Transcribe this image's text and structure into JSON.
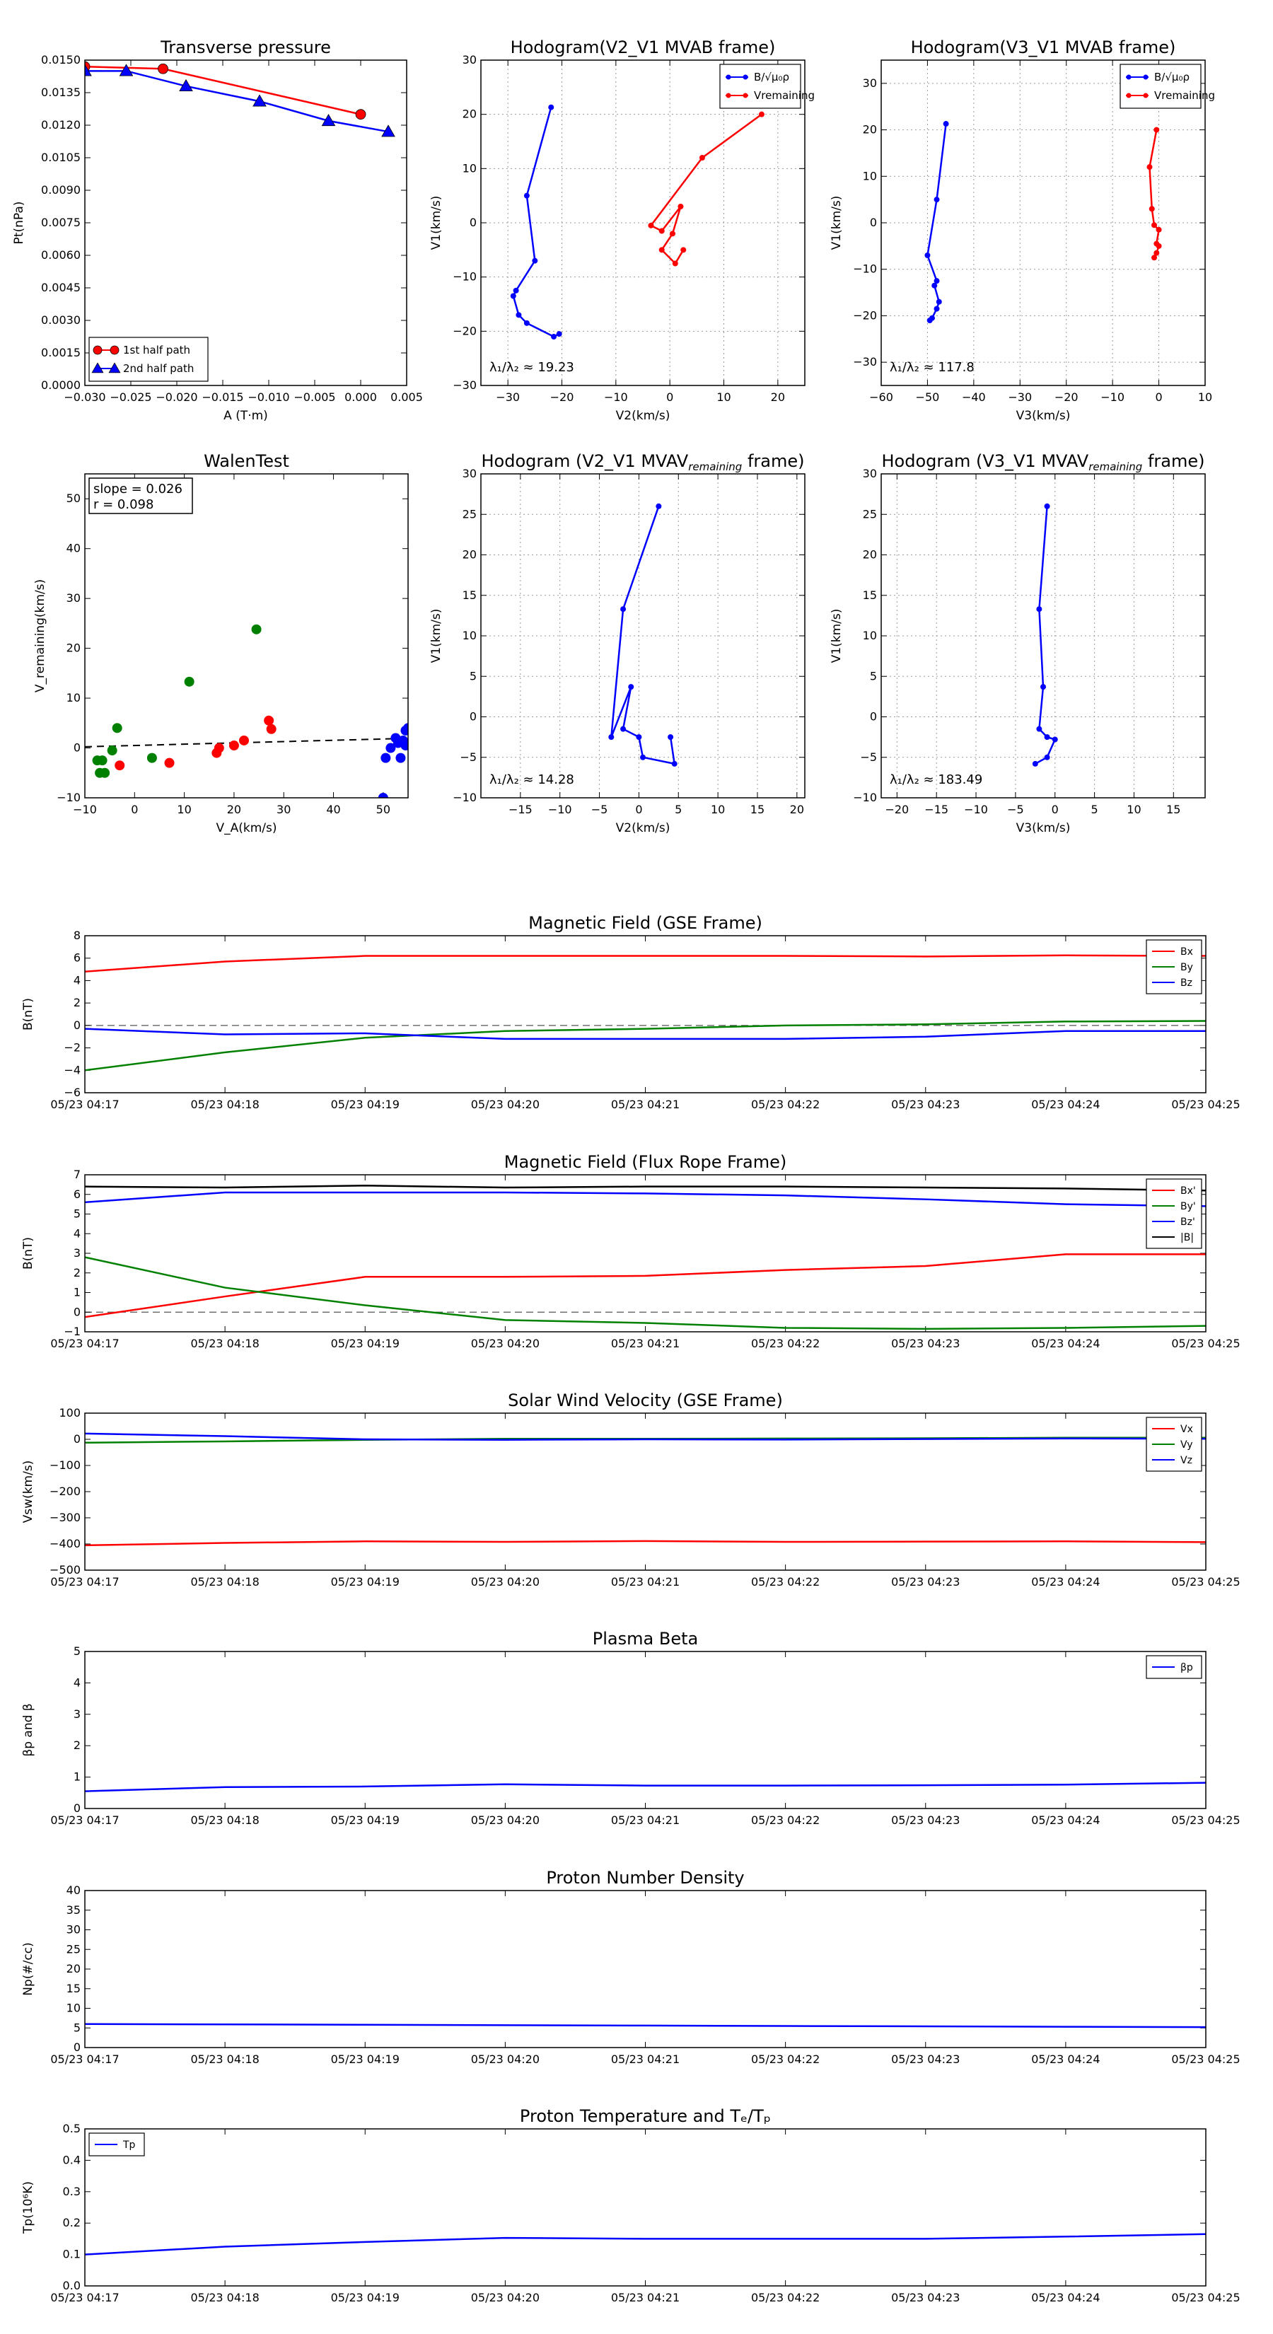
{
  "colors": {
    "red": "#ff0000",
    "green": "#008000",
    "blue": "#0000ff",
    "black": "#000000",
    "grid": "#9a9a9a"
  },
  "chart_data": [
    {
      "id": "transverse-pressure",
      "type": "line",
      "title": "Transverse pressure",
      "xlabel": "A (T·m)",
      "ylabel": "Pt(nPa)",
      "xlim": [
        -0.03,
        0.005
      ],
      "ylim": [
        0.0,
        0.015
      ],
      "xticks": [
        "−0.030",
        "−0.025",
        "−0.020",
        "−0.015",
        "−0.010",
        "−0.005",
        "0.000",
        "0.005"
      ],
      "yticks": [
        "0.0000",
        "0.0015",
        "0.0030",
        "0.0045",
        "0.0060",
        "0.0075",
        "0.0090",
        "0.0105",
        "0.0120",
        "0.0135",
        "0.0150"
      ],
      "grid": false,
      "legend_position": "lower-left",
      "series": [
        {
          "name": "1st half path",
          "color": "red",
          "marker": "circle",
          "x": [
            -0.03,
            -0.0215,
            0.0
          ],
          "y": [
            0.0147,
            0.0146,
            0.0125
          ]
        },
        {
          "name": "2nd half path",
          "color": "blue",
          "marker": "triangle",
          "x": [
            -0.03,
            -0.0255,
            -0.019,
            -0.011,
            -0.0035,
            0.003
          ],
          "y": [
            0.0145,
            0.0145,
            0.0138,
            0.0131,
            0.0122,
            0.0117
          ]
        }
      ]
    },
    {
      "id": "hodogram-v2-v1-mvab",
      "type": "line",
      "title": "Hodogram(V2_V1 MVAB frame)",
      "xlabel": "V2(km/s)",
      "ylabel": "V1(km/s)",
      "xlim": [
        -35,
        25
      ],
      "ylim": [
        -30,
        30
      ],
      "xticks": [
        "−30",
        "−20",
        "−10",
        "0",
        "10",
        "20"
      ],
      "yticks": [
        "−30",
        "−20",
        "−10",
        "0",
        "10",
        "20",
        "30"
      ],
      "grid": true,
      "legend_position": "top-right",
      "annotation": "λ₁/λ₂ ≈ 19.23",
      "series": [
        {
          "name": "B/√μ₀ρ",
          "color": "blue",
          "x": [
            -22.0,
            -26.5,
            -25.0,
            -28.5,
            -29.0,
            -28.0,
            -26.5,
            -21.5,
            -20.5
          ],
          "y": [
            21.3,
            5.0,
            -7.0,
            -12.5,
            -13.5,
            -17.0,
            -18.5,
            -21.0,
            -20.5
          ]
        },
        {
          "name": "Vremaining",
          "color": "red",
          "x": [
            17.0,
            6.0,
            -3.5,
            -1.5,
            2.0,
            0.5,
            -1.5,
            1.0,
            2.5
          ],
          "y": [
            20.0,
            12.0,
            -0.5,
            -1.5,
            3.0,
            -2.0,
            -5.0,
            -7.5,
            -5.0
          ]
        }
      ]
    },
    {
      "id": "hodogram-v3-v1-mvab",
      "type": "line",
      "title": "Hodogram(V3_V1 MVAB frame)",
      "xlabel": "V3(km/s)",
      "ylabel": "V1(km/s)",
      "xlim": [
        -60,
        10
      ],
      "ylim": [
        -35,
        35
      ],
      "xticks": [
        "−60",
        "−50",
        "−40",
        "−30",
        "−20",
        "−10",
        "0",
        "10"
      ],
      "yticks": [
        "−30",
        "−20",
        "−10",
        "0",
        "10",
        "20",
        "30"
      ],
      "grid": true,
      "legend_position": "top-right",
      "annotation": "λ₁/λ₂ ≈ 117.8",
      "series": [
        {
          "name": "B/√μ₀ρ",
          "color": "blue",
          "x": [
            -46.0,
            -48.0,
            -50.0,
            -48.0,
            -48.5,
            -47.5,
            -48.0,
            -49.0,
            -49.5
          ],
          "y": [
            21.3,
            5.0,
            -7.0,
            -12.5,
            -13.5,
            -17.0,
            -18.5,
            -20.5,
            -21.0
          ]
        },
        {
          "name": "Vremaining",
          "color": "red",
          "x": [
            -0.5,
            -2.0,
            -1.5,
            -1.0,
            0.0,
            -0.5,
            0.0,
            -0.5,
            -1.0
          ],
          "y": [
            20.0,
            12.0,
            3.0,
            -0.5,
            -1.5,
            -4.5,
            -5.0,
            -6.5,
            -7.5
          ]
        }
      ]
    },
    {
      "id": "walen-test",
      "type": "scatter",
      "title": "WalenTest",
      "xlabel": "V_A(km/s)",
      "ylabel": "V_remaining(km/s)",
      "xlim": [
        -10,
        55
      ],
      "ylim": [
        -10,
        55
      ],
      "xticks": [
        "−10",
        "0",
        "10",
        "20",
        "30",
        "40",
        "50"
      ],
      "yticks": [
        "−10",
        "0",
        "10",
        "20",
        "30",
        "40",
        "50"
      ],
      "grid": false,
      "annotation_lines": [
        "slope = 0.026",
        "r = 0.098"
      ],
      "fit_line": {
        "slope": 0.026,
        "intercept": 0.5,
        "style": "dashed"
      },
      "series": [
        {
          "color": "green",
          "x": [
            -7.5,
            -6.5,
            -7.0,
            -6.0,
            -4.5,
            -3.5,
            3.5,
            11.0,
            24.5
          ],
          "y": [
            -2.5,
            -2.5,
            -5.0,
            -5.0,
            -0.5,
            4.0,
            -2.0,
            13.3,
            23.8
          ]
        },
        {
          "color": "red",
          "x": [
            -3.0,
            7.0,
            16.5,
            17.0,
            20.0,
            22.0,
            27.0,
            27.5
          ],
          "y": [
            -3.5,
            -3.0,
            -1.0,
            0.0,
            0.5,
            1.5,
            5.5,
            3.8
          ]
        },
        {
          "color": "blue",
          "x": [
            50.0,
            50.5,
            51.5,
            52.5,
            53.0,
            53.5,
            54.0,
            54.5,
            54.5,
            55.0
          ],
          "y": [
            -10.0,
            -2.0,
            0.0,
            2.0,
            1.0,
            -2.0,
            1.5,
            3.5,
            0.5,
            4.0
          ]
        }
      ]
    },
    {
      "id": "hodogram-v2-v1-mvav",
      "type": "line",
      "title": "Hodogram (V2_V1 MVAV",
      "title_sub": "remaining",
      "title_end": " frame)",
      "xlabel": "V2(km/s)",
      "ylabel": "V1(km/s)",
      "xlim": [
        -20,
        21
      ],
      "ylim": [
        -10,
        30
      ],
      "xticks": [
        "−15",
        "−10",
        "−5",
        "0",
        "5",
        "10",
        "15",
        "20"
      ],
      "xtick_values": [
        -15,
        -10,
        -5,
        0,
        5,
        10,
        15,
        20
      ],
      "yticks": [
        "−10",
        "−5",
        "0",
        "5",
        "10",
        "15",
        "20",
        "25",
        "30"
      ],
      "grid": true,
      "annotation": "λ₁/λ₂ ≈ 14.28",
      "series": [
        {
          "color": "blue",
          "x": [
            2.5,
            -2.0,
            -3.5,
            -1.0,
            -2.0,
            0.0,
            0.5,
            4.5,
            4.0
          ],
          "y": [
            26.0,
            13.3,
            -2.5,
            3.7,
            -1.5,
            -2.5,
            -5.0,
            -5.8,
            -2.5
          ]
        }
      ]
    },
    {
      "id": "hodogram-v3-v1-mvav",
      "type": "line",
      "title": "Hodogram (V3_V1 MVAV",
      "title_sub": "remaining",
      "title_end": " frame)",
      "xlabel": "V3(km/s)",
      "ylabel": "V1(km/s)",
      "xlim": [
        -22,
        19
      ],
      "ylim": [
        -10,
        30
      ],
      "xticks": [
        "−20",
        "−15",
        "−10",
        "−5",
        "0",
        "5",
        "10",
        "15"
      ],
      "xtick_values": [
        -20,
        -15,
        -10,
        -5,
        0,
        5,
        10,
        15
      ],
      "yticks": [
        "−10",
        "−5",
        "0",
        "5",
        "10",
        "15",
        "20",
        "25",
        "30"
      ],
      "grid": true,
      "annotation": "λ₁/λ₂ ≈ 183.49",
      "series": [
        {
          "color": "blue",
          "x": [
            -1.0,
            -2.0,
            -1.5,
            -2.0,
            -1.0,
            0.0,
            -1.0,
            -2.5
          ],
          "y": [
            26.0,
            13.3,
            3.7,
            -1.5,
            -2.5,
            -2.8,
            -5.0,
            -5.8
          ]
        }
      ]
    },
    {
      "id": "magnetic-field-gse",
      "type": "line",
      "title": "Magnetic Field (GSE Frame)",
      "ylabel": "B(nT)",
      "ylim": [
        -6,
        8
      ],
      "yticks": [
        "−6",
        "−4",
        "−2",
        "0",
        "2",
        "4",
        "6",
        "8"
      ],
      "ytick_values": [
        -6,
        -4,
        -2,
        0,
        2,
        4,
        6,
        8
      ],
      "x": [
        "05/23 04:17",
        "05/23 04:18",
        "05/23 04:19",
        "05/23 04:20",
        "05/23 04:21",
        "05/23 04:22",
        "05/23 04:23",
        "05/23 04:24",
        "05/23 04:25"
      ],
      "zero_line": true,
      "legend_position": "top-right",
      "series": [
        {
          "name": "Bx",
          "color": "red",
          "values": [
            4.8,
            5.7,
            6.2,
            6.2,
            6.2,
            6.2,
            6.15,
            6.25,
            6.2
          ]
        },
        {
          "name": "By",
          "color": "green",
          "values": [
            -4.0,
            -2.4,
            -1.1,
            -0.5,
            -0.3,
            0.0,
            0.1,
            0.35,
            0.4
          ]
        },
        {
          "name": "Bz",
          "color": "blue",
          "values": [
            -0.3,
            -0.8,
            -0.7,
            -1.2,
            -1.2,
            -1.2,
            -1.0,
            -0.5,
            -0.5
          ]
        }
      ]
    },
    {
      "id": "magnetic-field-flux-rope",
      "type": "line",
      "title": "Magnetic Field (Flux Rope Frame)",
      "ylabel": "B(nT)",
      "ylim": [
        -1,
        7
      ],
      "yticks": [
        "−1",
        "0",
        "1",
        "2",
        "3",
        "4",
        "5",
        "6",
        "7"
      ],
      "ytick_values": [
        -1,
        0,
        1,
        2,
        3,
        4,
        5,
        6,
        7
      ],
      "x": [
        "05/23 04:17",
        "05/23 04:18",
        "05/23 04:19",
        "05/23 04:20",
        "05/23 04:21",
        "05/23 04:22",
        "05/23 04:23",
        "05/23 04:24",
        "05/23 04:25"
      ],
      "zero_line": true,
      "legend_position": "top-right",
      "series": [
        {
          "name": "Bx'",
          "color": "red",
          "values": [
            -0.25,
            0.8,
            1.8,
            1.8,
            1.85,
            2.15,
            2.35,
            2.95,
            2.95
          ]
        },
        {
          "name": "By'",
          "color": "green",
          "values": [
            2.8,
            1.25,
            0.35,
            -0.4,
            -0.55,
            -0.8,
            -0.85,
            -0.8,
            -0.7
          ]
        },
        {
          "name": "Bz'",
          "color": "blue",
          "values": [
            5.6,
            6.1,
            6.1,
            6.1,
            6.05,
            5.95,
            5.75,
            5.5,
            5.4
          ]
        },
        {
          "name": "|B|",
          "color": "black",
          "values": [
            6.4,
            6.35,
            6.45,
            6.35,
            6.4,
            6.4,
            6.35,
            6.3,
            6.2
          ]
        }
      ]
    },
    {
      "id": "solar-wind-velocity",
      "type": "line",
      "title": "Solar Wind Velocity (GSE Frame)",
      "ylabel": "Vsw(km/s)",
      "ylim": [
        -500,
        100
      ],
      "yticks": [
        "−500",
        "−400",
        "−300",
        "−200",
        "−100",
        "0",
        "100"
      ],
      "ytick_values": [
        -500,
        -400,
        -300,
        -200,
        -100,
        0,
        100
      ],
      "x": [
        "05/23 04:17",
        "05/23 04:18",
        "05/23 04:19",
        "05/23 04:20",
        "05/23 04:21",
        "05/23 04:22",
        "05/23 04:23",
        "05/23 04:24",
        "05/23 04:25"
      ],
      "legend_position": "top-right",
      "series": [
        {
          "name": "Vx",
          "color": "red",
          "values": [
            -405,
            -396,
            -390,
            -392,
            -389,
            -392,
            -391,
            -390,
            -393
          ]
        },
        {
          "name": "Vy",
          "color": "green",
          "values": [
            -13,
            -8,
            -2,
            2,
            2,
            3,
            4,
            6,
            6
          ]
        },
        {
          "name": "Vz",
          "color": "blue",
          "values": [
            22,
            12,
            0,
            -2,
            0,
            -1,
            1,
            3,
            2
          ]
        }
      ]
    },
    {
      "id": "plasma-beta",
      "type": "line",
      "title": "Plasma Beta",
      "ylabel": "βp and β",
      "ylim": [
        0,
        5
      ],
      "yticks": [
        "0",
        "1",
        "2",
        "3",
        "4",
        "5"
      ],
      "ytick_values": [
        0,
        1,
        2,
        3,
        4,
        5
      ],
      "x": [
        "05/23 04:17",
        "05/23 04:18",
        "05/23 04:19",
        "05/23 04:20",
        "05/23 04:21",
        "05/23 04:22",
        "05/23 04:23",
        "05/23 04:24",
        "05/23 04:25"
      ],
      "legend_position": "top-right",
      "series": [
        {
          "name": "βp",
          "color": "blue",
          "values": [
            0.55,
            0.68,
            0.7,
            0.77,
            0.73,
            0.73,
            0.74,
            0.76,
            0.82
          ]
        }
      ]
    },
    {
      "id": "proton-number-density",
      "type": "line",
      "title": "Proton Number Density",
      "ylabel": "Np(#/cc)",
      "ylim": [
        0,
        40
      ],
      "yticks": [
        "0",
        "5",
        "10",
        "15",
        "20",
        "25",
        "30",
        "35",
        "40"
      ],
      "ytick_values": [
        0,
        5,
        10,
        15,
        20,
        25,
        30,
        35,
        40
      ],
      "x": [
        "05/23 04:17",
        "05/23 04:18",
        "05/23 04:19",
        "05/23 04:20",
        "05/23 04:21",
        "05/23 04:22",
        "05/23 04:23",
        "05/23 04:24",
        "05/23 04:25"
      ],
      "series": [
        {
          "color": "blue",
          "values": [
            6.0,
            5.9,
            5.8,
            5.7,
            5.6,
            5.5,
            5.4,
            5.3,
            5.2
          ]
        }
      ]
    },
    {
      "id": "proton-temperature",
      "type": "line",
      "title": "Proton Temperature and Tₑ/Tₚ",
      "ylabel": "Tp(10⁶K)",
      "ylim": [
        0,
        0.5
      ],
      "yticks": [
        "0.0",
        "0.1",
        "0.2",
        "0.3",
        "0.4",
        "0.5"
      ],
      "ytick_values": [
        0,
        0.1,
        0.2,
        0.3,
        0.4,
        0.5
      ],
      "x": [
        "05/23 04:17",
        "05/23 04:18",
        "05/23 04:19",
        "05/23 04:20",
        "05/23 04:21",
        "05/23 04:22",
        "05/23 04:23",
        "05/23 04:24",
        "05/23 04:25"
      ],
      "legend_position": "top-left",
      "series": [
        {
          "name": "Tp",
          "color": "blue",
          "values": [
            0.1,
            0.125,
            0.14,
            0.153,
            0.15,
            0.15,
            0.15,
            0.157,
            0.165
          ]
        }
      ]
    }
  ]
}
